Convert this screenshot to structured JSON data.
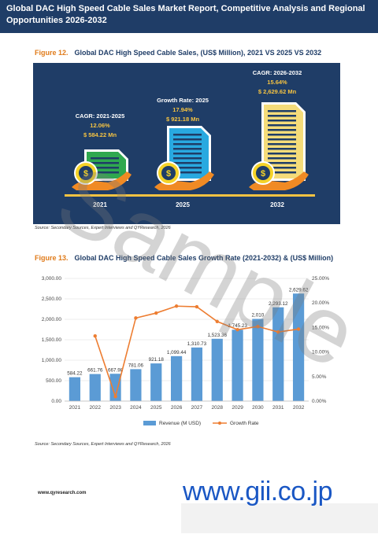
{
  "header": {
    "title": "Global DAC High Speed Cable Sales Market Report, Competitive Analysis and Regional Opportunities 2026-2032"
  },
  "figure12": {
    "number": "Figure 12.",
    "title": "Global DAC High Speed Cable Sales, (US$ Million), 2021 VS 2025 VS 2032",
    "source": "Source: Secondary Sources, Expert Interviews and QYResearch, 2026",
    "items": [
      {
        "year": "2021",
        "caption": "CAGR: 2021-2025",
        "rate": "12.06%",
        "value": "$ 584.22 Mn"
      },
      {
        "year": "2025",
        "caption": "Growth Rate: 2025",
        "rate": "17.94%",
        "value": "$ 921.18 Mn"
      },
      {
        "year": "2032",
        "caption": "CAGR: 2026-2032",
        "rate": "15.64%",
        "value": "$ 2,629.62 Mn"
      }
    ],
    "colors": {
      "bg": "#1f3d67",
      "doc2021": "#2fa84f",
      "doc2025": "#29a9e0",
      "doc2032": "#f5dc7a",
      "hand": "#f08a24",
      "coin": "#f5d328",
      "label": "#f5c342"
    }
  },
  "figure13": {
    "number": "Figure 13.",
    "title": "Global DAC High Speed Cable Sales Growth Rate (2021-2032) & (US$ Million)",
    "source": "Source: Secondary Sources, Expert Interviews and QYResearch, 2026"
  },
  "chart_data": {
    "type": "bar",
    "categories": [
      "2021",
      "2022",
      "2023",
      "2024",
      "2025",
      "2026",
      "2027",
      "2028",
      "2029",
      "2030",
      "2031",
      "2032"
    ],
    "series": [
      {
        "name": "Revenue (M USD)",
        "type": "bar",
        "axis": "left",
        "color": "#5b9bd5",
        "values": [
          584.22,
          661.76,
          667.98,
          781.06,
          921.18,
          1099.44,
          1310.73,
          1523.36,
          1745.23,
          2010,
          2293.12,
          2629.62
        ],
        "labels": [
          "584.22",
          "661.76",
          "667.98",
          "781.06",
          "921.18",
          "1,099.44",
          "1,310.73",
          "1,523.36",
          "1,745.23",
          "2,010",
          "2,293.12",
          "2,629.62"
        ]
      },
      {
        "name": "Growth Rate",
        "type": "line",
        "axis": "right",
        "color": "#ed7d31",
        "values": [
          null,
          13.27,
          0.94,
          16.93,
          17.94,
          19.35,
          19.22,
          16.22,
          14.56,
          15.2,
          14.08,
          14.67
        ]
      }
    ],
    "y_left": {
      "min": 0,
      "max": 3000,
      "ticks": [
        "0.00",
        "500.00",
        "1,000.00",
        "1,500.00",
        "2,000.00",
        "2,500.00",
        "3,000.00"
      ]
    },
    "y_right": {
      "min": 0,
      "max": 25,
      "ticks": [
        "0.00%",
        "5.00%",
        "10.00%",
        "15.00%",
        "20.00%",
        "25.00%"
      ]
    },
    "grid": true,
    "legend": "bottom"
  },
  "footer": {
    "url": "www.qyresearch.com",
    "brand": "www.gii.co.jp",
    "watermark": "Sample"
  }
}
